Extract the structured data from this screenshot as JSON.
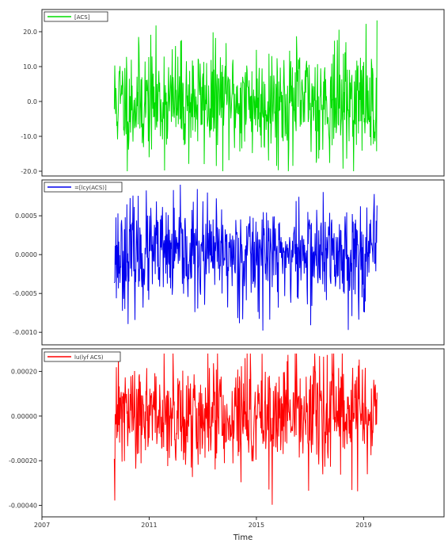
{
  "chart_data": [
    {
      "type": "line",
      "series": [
        {
          "name": "[ACS]",
          "color": "#00dd00"
        }
      ],
      "y_ticks": [
        "20.0",
        "10.0",
        "0.0",
        "-10.0",
        "-20.0"
      ],
      "ylim": [
        -20,
        25
      ],
      "level": 0.0,
      "spread": 8.0,
      "seed": 11
    },
    {
      "type": "line",
      "series": [
        {
          "name": "=[lcy(ACS)]",
          "color": "#0000ee"
        }
      ],
      "y_ticks": [
        "0.0005",
        "0.0000",
        "-0.0005",
        "-0.0010"
      ],
      "ylim": [
        -0.0011,
        0.0009
      ],
      "level": 0.0,
      "spread": 0.00033,
      "seed": 23
    },
    {
      "type": "line",
      "series": [
        {
          "name": "lu(lyf ACS)",
          "color": "#ff0000"
        }
      ],
      "y_ticks": [
        "0.00020",
        "0.00000",
        "-0.00020",
        "-0.00040"
      ],
      "ylim": [
        -0.00043,
        0.00028
      ],
      "level": 0.0,
      "spread": 0.00012,
      "seed": 47
    }
  ],
  "x_axis": {
    "ticks": [
      "2007",
      "2011",
      "2015",
      "2019"
    ],
    "label": "Time",
    "xlim": [
      2007,
      2022
    ],
    "data_start": 2009.7,
    "data_end": 2019.5,
    "n_points": 650
  }
}
